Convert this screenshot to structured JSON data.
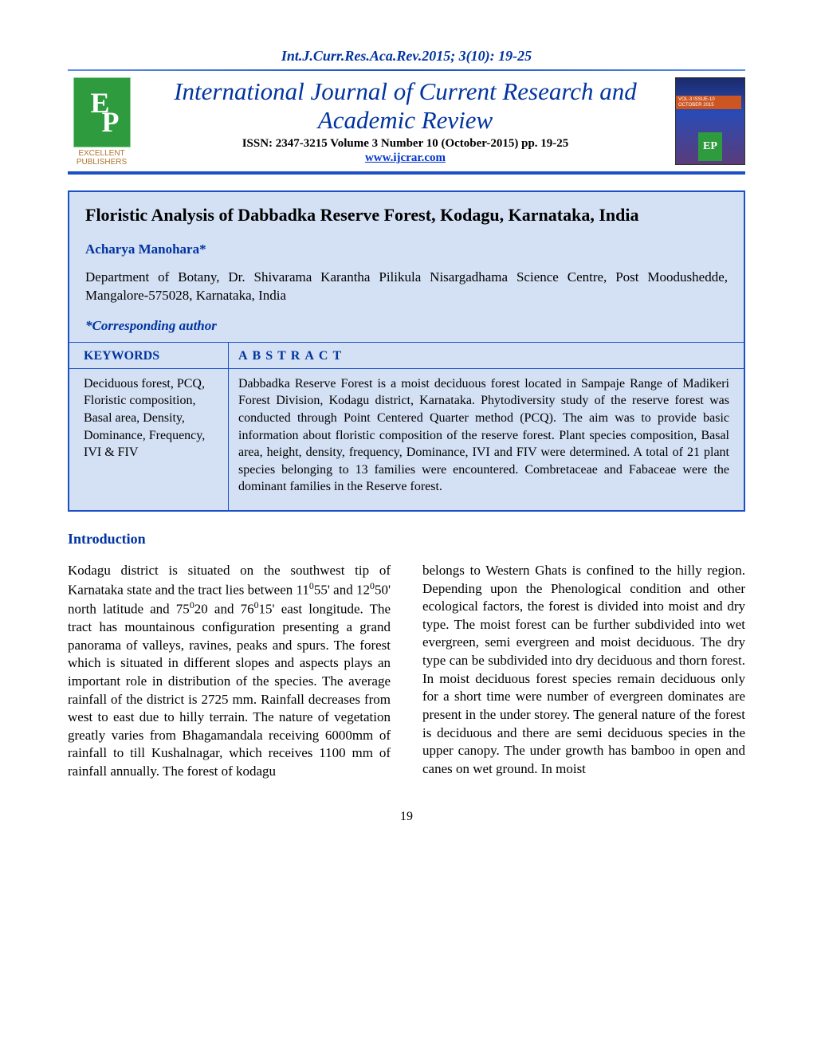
{
  "header": {
    "citation": "Int.J.Curr.Res.Aca.Rev.2015; 3(10): 19-25",
    "journal_title": "International Journal of Current Research and Academic Review",
    "issn_line": "ISSN: 2347-3215 Volume 3 Number 10 (October-2015) pp. 19-25",
    "website": "www.ijcrar.com",
    "publisher": {
      "letters": "EP",
      "name_line1": "EXCELLENT",
      "name_line2": "PUBLISHERS"
    },
    "cover_badge": "VOL-3 ISSUE-10 OCTOBER 2015"
  },
  "article": {
    "title": "Floristic Analysis of Dabbadka Reserve Forest, Kodagu, Karnataka, India",
    "author": "Acharya Manohara*",
    "affiliation": "Department of Botany, Dr. Shivarama Karantha Pilikula Nisargadhama Science Centre, Post Moodushedde, Mangalore-575028, Karnataka, India",
    "corresponding": "*Corresponding author",
    "keywords_heading": "KEYWORDS",
    "abstract_heading": "ABSTRACT",
    "keywords": "Deciduous forest, PCQ, Floristic composition, Basal area, Density, Dominance, Frequency, IVI & FIV",
    "abstract": "Dabbadka Reserve Forest is a moist deciduous forest located in Sampaje Range of Madikeri Forest Division, Kodagu district, Karnataka. Phytodiversity study of the reserve forest was conducted through Point Centered Quarter method (PCQ). The aim was to provide basic information about floristic composition of the reserve forest. Plant species composition, Basal area, height, density, frequency, Dominance, IVI and FIV were determined. A total of 21 plant species belonging to 13 families were encountered. Combretaceae and Fabaceae were the dominant families in the Reserve forest."
  },
  "sections": {
    "intro_heading": "Introduction",
    "intro_col1_html": "Kodagu district is situated on the southwest tip of Karnataka state and the tract lies between 11<sup>0</sup>55' and 12<sup>0</sup>50' north latitude and 75<sup>0</sup>20 and 76<sup>0</sup>15' east longitude. The tract has mountainous configuration presenting a grand panorama of valleys, ravines, peaks and spurs. The forest which is situated in different slopes and aspects plays an important role in distribution of the species. The average rainfall of the district is 2725 mm. Rainfall decreases from west to east due to hilly terrain. The nature of vegetation greatly varies from Bhagamandala receiving 6000mm of rainfall to till Kushalnagar, which receives 1100 mm of rainfall annually. The forest of kodagu",
    "intro_col2": "belongs to Western Ghats is confined to the hilly region. Depending upon the Phenological condition and other ecological factors, the forest is divided into moist and dry type. The moist forest can be further subdivided into wet evergreen, semi evergreen and moist deciduous. The dry type can be subdivided into dry deciduous and thorn forest. In moist deciduous forest species remain deciduous only for a short time were number of evergreen dominates are present in the under storey. The general nature of the forest is deciduous and there are semi deciduous species in the upper canopy. The under growth has bamboo in open and canes on wet ground. In moist"
  },
  "page_number": "19",
  "colors": {
    "heading_blue": "#0033a0",
    "rule_blue": "#1a4fc7",
    "box_bg": "#d4e1f4",
    "link_blue": "#0033cc",
    "publisher_green": "#2e9b3e",
    "publisher_text": "#b0742e"
  }
}
